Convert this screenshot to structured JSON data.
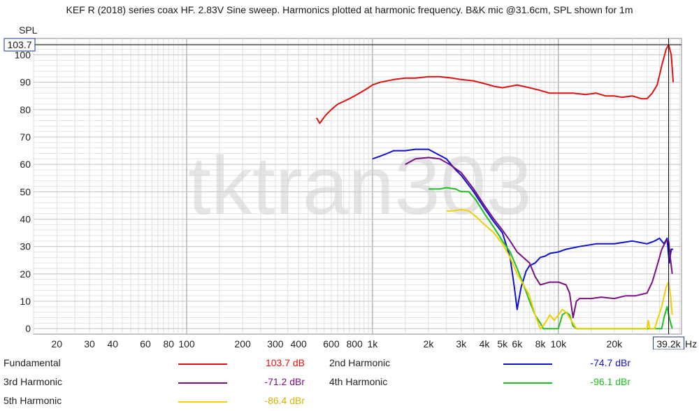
{
  "header": {
    "title": "KEF R (2018) series coax HF. 2.83V Sine sweep. Harmonics plotted at harmonic frequency. B&K mic @31.6cm, SPL shown for 1m"
  },
  "watermark": "tktran303",
  "cursor": {
    "y_readout": "103.7",
    "x_readout": "39.2k",
    "x_value": 39200,
    "y_value": 103.7
  },
  "chart_data": {
    "type": "line",
    "xscale": "log",
    "xlim": [
      15,
      46000
    ],
    "ylim": [
      -2,
      106
    ],
    "ylabel": "SPL",
    "xunit": "Hz",
    "grid": true,
    "x_ticks": [
      {
        "v": 20,
        "label": "20"
      },
      {
        "v": 30,
        "label": "30"
      },
      {
        "v": 40,
        "label": "40"
      },
      {
        "v": 60,
        "label": "60"
      },
      {
        "v": 80,
        "label": "80"
      },
      {
        "v": 100,
        "label": "100"
      },
      {
        "v": 200,
        "label": "200"
      },
      {
        "v": 300,
        "label": "300"
      },
      {
        "v": 400,
        "label": "400"
      },
      {
        "v": 600,
        "label": "600"
      },
      {
        "v": 800,
        "label": "800"
      },
      {
        "v": 1000,
        "label": "1k"
      },
      {
        "v": 2000,
        "label": "2k"
      },
      {
        "v": 3000,
        "label": "3k"
      },
      {
        "v": 4000,
        "label": "4k"
      },
      {
        "v": 5000,
        "label": "5k"
      },
      {
        "v": 6000,
        "label": "6k"
      },
      {
        "v": 8000,
        "label": "8k"
      },
      {
        "v": 10000,
        "label": "10k"
      },
      {
        "v": 20000,
        "label": "20k"
      }
    ],
    "y_ticks": [
      0,
      10,
      20,
      30,
      40,
      50,
      60,
      70,
      80,
      90,
      100
    ],
    "series": [
      {
        "name": "Fundamental",
        "color": "#e01010",
        "legend_value": "103.7 dB",
        "points": [
          [
            500,
            77
          ],
          [
            520,
            75
          ],
          [
            560,
            78
          ],
          [
            600,
            80
          ],
          [
            650,
            82
          ],
          [
            700,
            83
          ],
          [
            750,
            84
          ],
          [
            800,
            85
          ],
          [
            850,
            86
          ],
          [
            900,
            87
          ],
          [
            950,
            88
          ],
          [
            1000,
            89
          ],
          [
            1100,
            90
          ],
          [
            1200,
            90.5
          ],
          [
            1300,
            91
          ],
          [
            1500,
            91.5
          ],
          [
            1700,
            91.5
          ],
          [
            2000,
            92
          ],
          [
            2300,
            92
          ],
          [
            2700,
            91.5
          ],
          [
            3000,
            91
          ],
          [
            3500,
            90.5
          ],
          [
            4000,
            89.5
          ],
          [
            4500,
            88.5
          ],
          [
            5000,
            88
          ],
          [
            6000,
            89
          ],
          [
            7000,
            88
          ],
          [
            8000,
            87
          ],
          [
            9000,
            86
          ],
          [
            10000,
            86
          ],
          [
            12000,
            86
          ],
          [
            14000,
            85.5
          ],
          [
            16000,
            86
          ],
          [
            18000,
            85
          ],
          [
            20000,
            85
          ],
          [
            22000,
            84.5
          ],
          [
            25000,
            85
          ],
          [
            28000,
            84
          ],
          [
            30000,
            84
          ],
          [
            32000,
            86
          ],
          [
            34000,
            89
          ],
          [
            36000,
            96
          ],
          [
            38000,
            102
          ],
          [
            39200,
            103.7
          ],
          [
            40500,
            100
          ],
          [
            41500,
            90
          ]
        ]
      },
      {
        "name": "2nd Harmonic",
        "color": "#1010d0",
        "legend_value": "-74.7 dBr",
        "points": [
          [
            1000,
            62
          ],
          [
            1100,
            63
          ],
          [
            1200,
            64
          ],
          [
            1300,
            65
          ],
          [
            1500,
            65
          ],
          [
            1700,
            65.5
          ],
          [
            2000,
            65.5
          ],
          [
            2200,
            64
          ],
          [
            2500,
            62
          ],
          [
            2800,
            58
          ],
          [
            3000,
            56
          ],
          [
            3500,
            50
          ],
          [
            4000,
            44
          ],
          [
            4500,
            39
          ],
          [
            5000,
            35
          ],
          [
            5500,
            26
          ],
          [
            5800,
            15
          ],
          [
            6000,
            7
          ],
          [
            6300,
            15
          ],
          [
            6700,
            21
          ],
          [
            7000,
            23
          ],
          [
            7500,
            24
          ],
          [
            8000,
            26
          ],
          [
            8500,
            26.5
          ],
          [
            9000,
            27.5
          ],
          [
            10000,
            28
          ],
          [
            11000,
            29
          ],
          [
            13000,
            30
          ],
          [
            16000,
            31
          ],
          [
            20000,
            31
          ],
          [
            25000,
            32
          ],
          [
            30000,
            31
          ],
          [
            33000,
            32
          ],
          [
            35000,
            33
          ],
          [
            37000,
            31
          ],
          [
            38500,
            33
          ],
          [
            39500,
            24
          ],
          [
            40500,
            29
          ],
          [
            41500,
            29
          ]
        ]
      },
      {
        "name": "3rd Harmonic",
        "color": "#7a1080",
        "legend_value": "-71.2 dBr",
        "points": [
          [
            1500,
            60
          ],
          [
            1700,
            62
          ],
          [
            2000,
            62.5
          ],
          [
            2300,
            62
          ],
          [
            2600,
            60
          ],
          [
            3000,
            57
          ],
          [
            3500,
            51
          ],
          [
            4000,
            45
          ],
          [
            4500,
            40
          ],
          [
            5000,
            36
          ],
          [
            5500,
            32
          ],
          [
            6000,
            28
          ],
          [
            7000,
            24
          ],
          [
            7500,
            19
          ],
          [
            8000,
            16
          ],
          [
            9000,
            17
          ],
          [
            10000,
            17
          ],
          [
            11000,
            16
          ],
          [
            11500,
            13
          ],
          [
            12000,
            4
          ],
          [
            12500,
            10
          ],
          [
            13000,
            11
          ],
          [
            15000,
            11
          ],
          [
            17000,
            11.5
          ],
          [
            20000,
            11
          ],
          [
            23000,
            12
          ],
          [
            26000,
            12
          ],
          [
            30000,
            13
          ],
          [
            32000,
            17
          ],
          [
            34000,
            23
          ],
          [
            36000,
            29
          ],
          [
            38000,
            32
          ],
          [
            39200,
            32
          ],
          [
            40000,
            26
          ],
          [
            41000,
            20
          ]
        ]
      },
      {
        "name": "4th Harmonic",
        "color": "#20c020",
        "legend_value": "-96.1 dBr",
        "points": [
          [
            2000,
            51
          ],
          [
            2300,
            51
          ],
          [
            2500,
            51.5
          ],
          [
            2800,
            51
          ],
          [
            3000,
            50
          ],
          [
            3300,
            50
          ],
          [
            3600,
            47
          ],
          [
            4000,
            42
          ],
          [
            4500,
            37
          ],
          [
            5000,
            32
          ],
          [
            5500,
            28
          ],
          [
            6000,
            22
          ],
          [
            6500,
            16
          ],
          [
            7000,
            10
          ],
          [
            7500,
            5
          ],
          [
            8000,
            2
          ],
          [
            8300,
            0
          ],
          [
            10000,
            0
          ],
          [
            10500,
            5
          ],
          [
            11000,
            6
          ],
          [
            11500,
            5
          ],
          [
            12000,
            1
          ],
          [
            12500,
            0
          ],
          [
            36000,
            0
          ],
          [
            37000,
            4
          ],
          [
            38500,
            8
          ],
          [
            39500,
            4
          ],
          [
            41000,
            0
          ]
        ]
      },
      {
        "name": "5th Harmonic",
        "color": "#f0d000",
        "legend_value": "-86.4 dBr",
        "points": [
          [
            2500,
            43
          ],
          [
            2700,
            43
          ],
          [
            3000,
            43.5
          ],
          [
            3300,
            43
          ],
          [
            3600,
            41
          ],
          [
            4000,
            38
          ],
          [
            4500,
            35
          ],
          [
            5000,
            31
          ],
          [
            5500,
            26
          ],
          [
            6000,
            20
          ],
          [
            6500,
            16
          ],
          [
            7000,
            12
          ],
          [
            7500,
            5
          ],
          [
            8000,
            0
          ],
          [
            8500,
            2
          ],
          [
            9000,
            5
          ],
          [
            9500,
            3
          ],
          [
            10000,
            5
          ],
          [
            10500,
            7
          ],
          [
            11000,
            6
          ],
          [
            12000,
            2
          ],
          [
            12500,
            0
          ],
          [
            30000,
            0
          ],
          [
            30500,
            3
          ],
          [
            31000,
            0
          ],
          [
            33000,
            0
          ],
          [
            34000,
            3
          ],
          [
            36000,
            8
          ],
          [
            38000,
            15
          ],
          [
            39200,
            17
          ],
          [
            40200,
            12
          ],
          [
            41000,
            5
          ]
        ]
      }
    ]
  }
}
